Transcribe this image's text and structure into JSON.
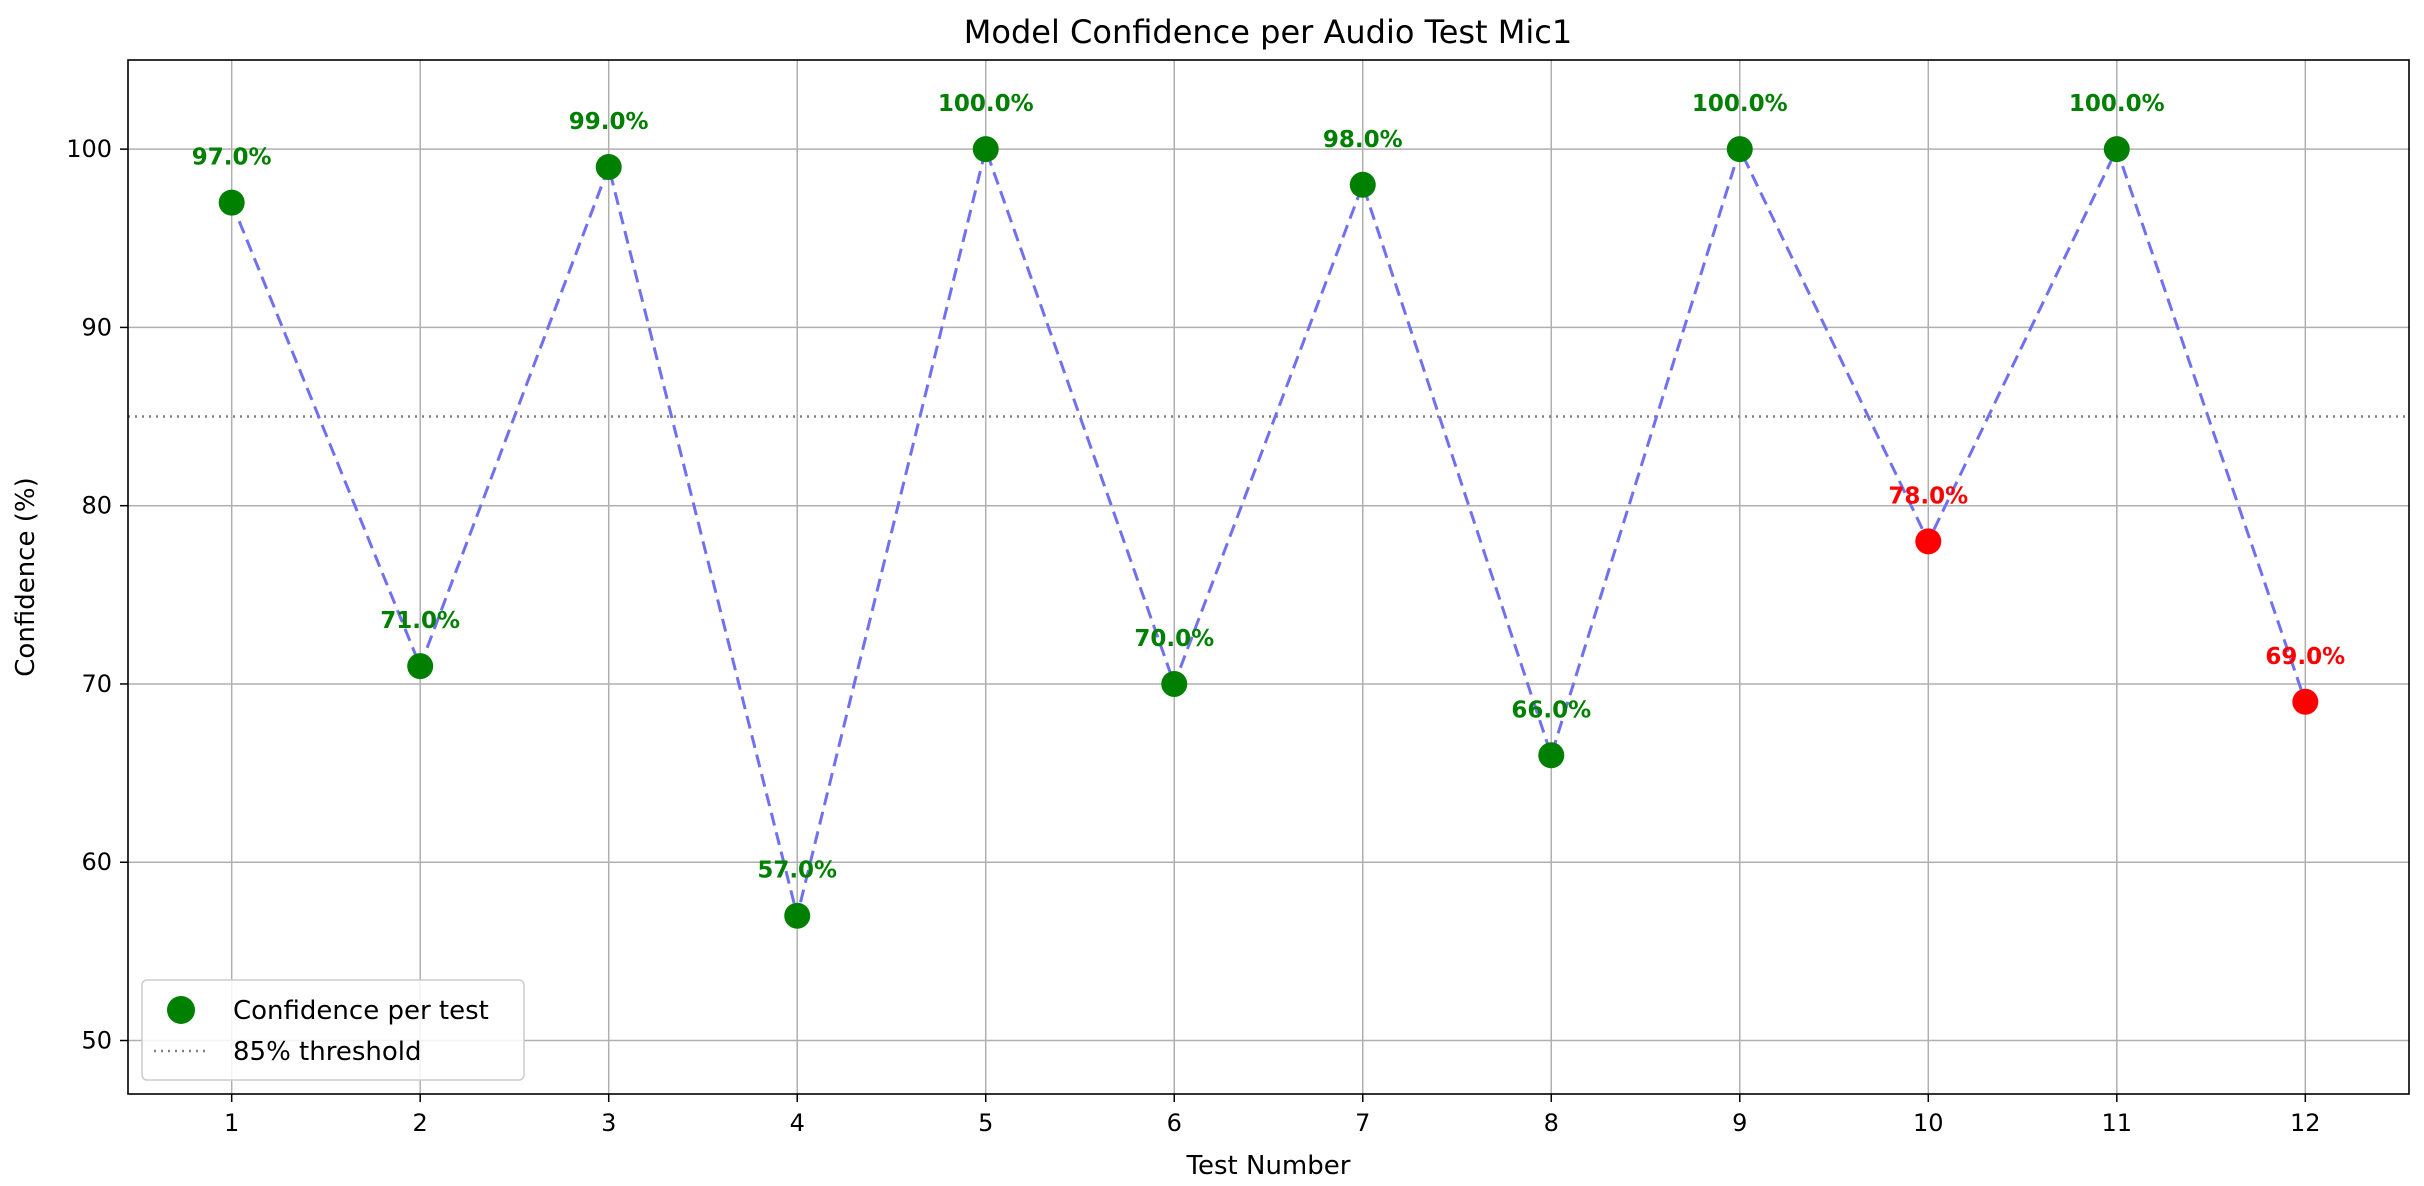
{
  "chart_data": {
    "type": "scatter",
    "title": "Model Confidence per Audio Test Mic1",
    "xlabel": "Test Number",
    "ylabel": "Confidence (%)",
    "xlim": [
      0.45,
      12.55
    ],
    "ylim": [
      47,
      105
    ],
    "x_ticks": [
      1,
      2,
      3,
      4,
      5,
      6,
      7,
      8,
      9,
      10,
      11,
      12
    ],
    "y_ticks": [
      50,
      60,
      70,
      80,
      90,
      100
    ],
    "grid": true,
    "threshold": 85,
    "legend_position": "lower-left",
    "legend": {
      "points": "Confidence per test",
      "threshold": "85% threshold"
    },
    "series": [
      {
        "name": "Confidence per test",
        "x": [
          1,
          2,
          3,
          4,
          5,
          6,
          7,
          8,
          9,
          10,
          11,
          12
        ],
        "values": [
          97,
          71,
          99,
          57,
          100,
          70,
          98,
          66,
          100,
          78,
          100,
          69
        ],
        "labels": [
          "97.0%",
          "71.0%",
          "99.0%",
          "57.0%",
          "100.0%",
          "70.0%",
          "98.0%",
          "66.0%",
          "100.0%",
          "78.0%",
          "100.0%",
          "69.0%"
        ],
        "colors": [
          "#008000",
          "#008000",
          "#008000",
          "#008000",
          "#008000",
          "#008000",
          "#008000",
          "#008000",
          "#008000",
          "#ff0000",
          "#008000",
          "#ff0000"
        ]
      }
    ],
    "colors": {
      "line": "#7070f0",
      "threshold": "#808080",
      "grid": "#b0b0b0",
      "pass": "#008000",
      "fail": "#ff0000"
    }
  }
}
